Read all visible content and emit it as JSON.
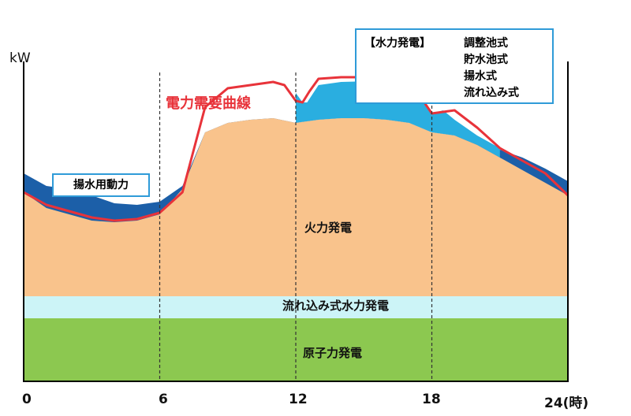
{
  "chart_data": {
    "type": "area",
    "ylabel": "kW",
    "x_ticks": [
      "0",
      "6",
      "12",
      "18",
      "24(時)"
    ],
    "xlim": [
      0,
      24
    ],
    "ylim": [
      0,
      100
    ],
    "layers": {
      "nuclear": {
        "name": "原子力発電",
        "color": "#8cc850",
        "bottom": 0,
        "top": 20
      },
      "run_of_river": {
        "name": "流れ込み式水力発電",
        "color": "#ccf4f7",
        "bottom": 20,
        "top": 27
      },
      "thermal": {
        "name": "火力発電",
        "color": "#f9c38c",
        "x": [
          0,
          1,
          2,
          3,
          4,
          5,
          6,
          7,
          8,
          9,
          10,
          11,
          12,
          13,
          14,
          15,
          16,
          17,
          18,
          19,
          20,
          21,
          22,
          23,
          24
        ],
        "y": [
          60,
          55,
          53,
          51,
          50.5,
          51,
          53,
          61,
          79,
          82,
          83,
          83.5,
          82,
          83,
          83.5,
          83.5,
          83,
          82,
          79,
          78,
          75,
          71,
          67,
          63,
          59
        ]
      },
      "hydro_top": {
        "name": "水力発電",
        "color": "#2aaee0",
        "x": [
          12,
          12.3,
          12.5,
          13,
          14,
          15,
          16,
          17,
          18,
          18.5,
          19,
          20,
          21
        ],
        "y": [
          91.5,
          88.5,
          88.5,
          94,
          95,
          95.2,
          95,
          94,
          85,
          86,
          83,
          78,
          74
        ]
      },
      "pumped_storage": {
        "name": "揚水用動力",
        "color": "#1c5fa8",
        "x": [
          0,
          1,
          2,
          3,
          4,
          5,
          6,
          7,
          8,
          9,
          10,
          11,
          12,
          13,
          14,
          15,
          16,
          17,
          18,
          19,
          20,
          21,
          22,
          23,
          24
        ],
        "y": [
          66,
          62,
          61,
          59,
          56.5,
          56,
          57,
          62,
          79,
          82,
          83,
          83.5,
          82,
          83,
          83.5,
          83.5,
          83,
          82,
          79,
          78,
          75.5,
          73.5,
          71,
          67.5,
          63.5
        ]
      }
    },
    "demand_curve": {
      "name": "電力需要曲線",
      "color": "#e8333a",
      "x": [
        0,
        1,
        2,
        3,
        4,
        5,
        6,
        7,
        8,
        9,
        10,
        11,
        11.5,
        12,
        12.3,
        12.6,
        13,
        14,
        15,
        16,
        17,
        18,
        19,
        20,
        21,
        22,
        23,
        24
      ],
      "y": [
        60,
        56,
        54,
        52,
        51,
        51.5,
        53.5,
        60,
        87,
        93,
        94,
        95,
        94,
        89,
        88.5,
        92,
        96,
        96.5,
        96.5,
        96.5,
        95.5,
        85,
        86,
        80.5,
        74,
        70,
        66,
        59
      ]
    },
    "dashed_lines_at": [
      6,
      12,
      18
    ]
  },
  "labels": {
    "y_axis": "kW",
    "demand_curve": "電力需要曲線",
    "thermal": "火力発電",
    "run_of_river": "流れ込み式水力発電",
    "nuclear": "原子力発電",
    "pumping_power": "揚水用動力"
  },
  "legend": {
    "heading": "【水力発電】",
    "items": [
      "調整池式",
      "貯水池式",
      "揚水式",
      "流れ込み式"
    ]
  }
}
